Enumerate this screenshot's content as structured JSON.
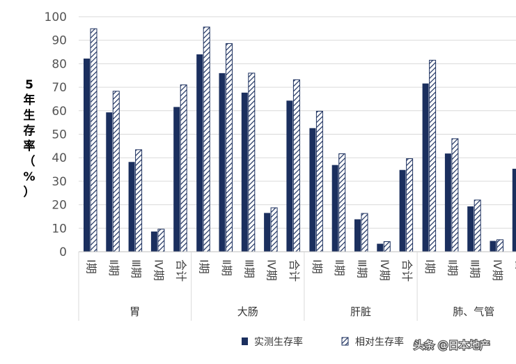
{
  "chart_data": {
    "type": "bar",
    "title": "",
    "ylabel": "5年生存率（%）",
    "ylim": [
      0,
      100
    ],
    "yticks": [
      0,
      10,
      20,
      30,
      40,
      50,
      60,
      70,
      80,
      90,
      100
    ],
    "grid": true,
    "legend_position": "bottom",
    "groups": [
      {
        "name": "胃",
        "categories": [
          "Ⅰ期",
          "Ⅱ期",
          "Ⅲ期",
          "Ⅳ期",
          "合计"
        ]
      },
      {
        "name": "大肠",
        "categories": [
          "Ⅰ期",
          "Ⅱ期",
          "Ⅲ期",
          "Ⅳ期",
          "合计"
        ]
      },
      {
        "name": "肝脏",
        "categories": [
          "Ⅰ期",
          "Ⅱ期",
          "Ⅲ期",
          "Ⅳ期",
          "合计"
        ]
      },
      {
        "name": "肺、气管",
        "categories": [
          "Ⅰ期",
          "Ⅱ期",
          "Ⅲ期",
          "Ⅳ期",
          "合"
        ]
      }
    ],
    "series": [
      {
        "name": "实测生存率",
        "color": "#1b2f5e",
        "pattern": "solid",
        "values": [
          82.2,
          59.3,
          38.2,
          8.6,
          61.6,
          84.0,
          76.0,
          67.7,
          16.5,
          64.3,
          52.6,
          36.9,
          13.8,
          3.4,
          34.8,
          71.6,
          41.8,
          19.3,
          4.6,
          35.3
        ]
      },
      {
        "name": "相对生存率",
        "color": "#1b2f5e",
        "pattern": "hatched",
        "values": [
          94.9,
          68.3,
          43.4,
          9.6,
          71.0,
          95.6,
          88.6,
          76.0,
          18.7,
          73.2,
          59.8,
          41.7,
          16.3,
          4.3,
          39.6,
          81.5,
          48.1,
          22.0,
          5.1,
          null
        ]
      }
    ]
  },
  "watermark": "头条 @日本地产"
}
